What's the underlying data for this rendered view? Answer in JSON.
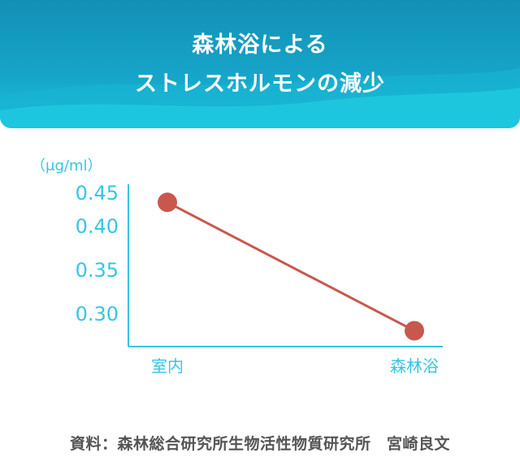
{
  "header": {
    "title_line1": "森林浴による",
    "title_line2": "ストレスホルモンの減少"
  },
  "chart_data": {
    "type": "line",
    "categories": [
      "室内",
      "森林浴"
    ],
    "series": [
      {
        "values": [
          0.435,
          0.28
        ],
        "color": "#c8584e"
      }
    ],
    "ylabel": "（μg/ml）",
    "yticks": [
      "0.45",
      "0.40",
      "0.35",
      "0.30"
    ],
    "ylim": [
      0.26,
      0.45
    ],
    "grid": false,
    "axis_color": "#36c5e6"
  },
  "footer": {
    "source": "資料：森林総合研究所生物活性物質研究所　宮崎良文"
  }
}
